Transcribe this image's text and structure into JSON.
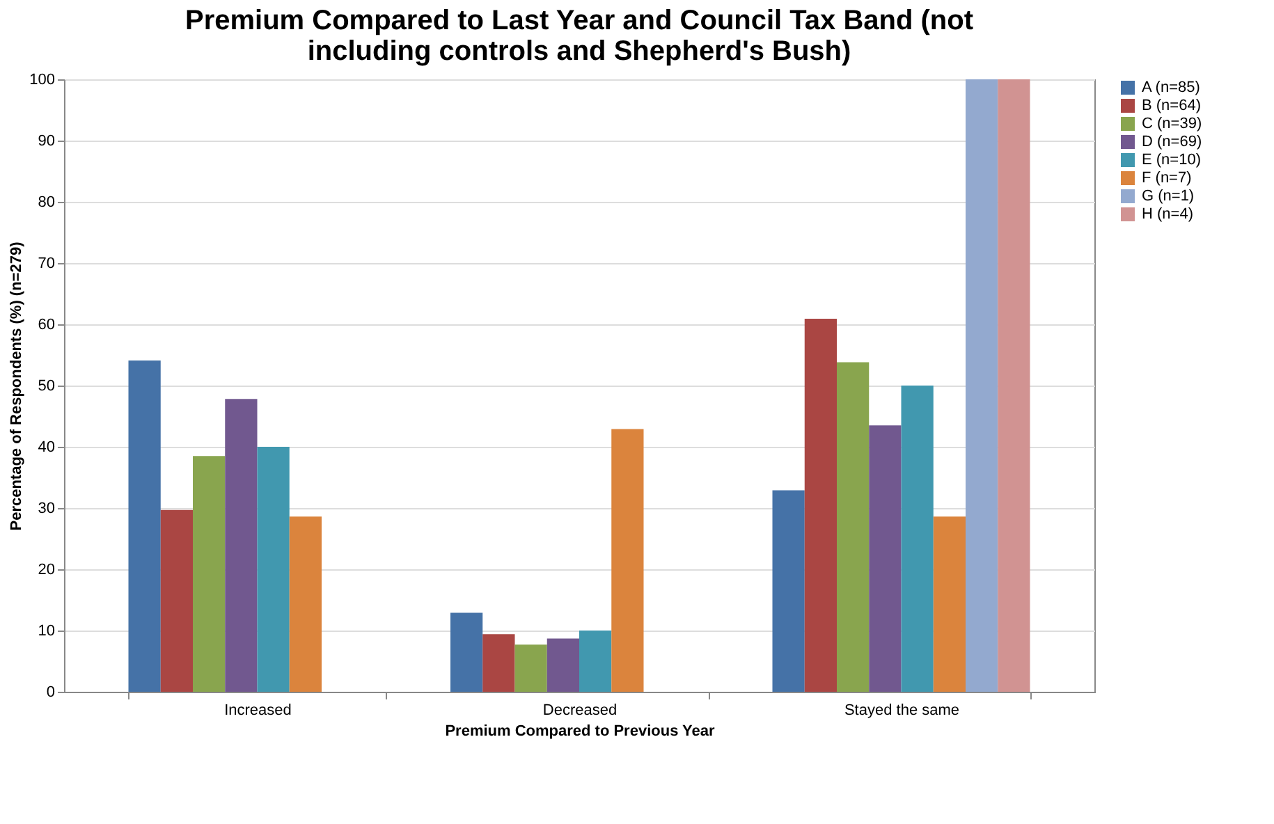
{
  "chart_data": {
    "type": "bar",
    "title": "Premium Compared to Last Year and Council Tax Band (not including controls and Shepherd's Bush)",
    "xlabel": "Premium Compared to Previous Year",
    "ylabel": "Percentage of Respondents (%) (n=279)",
    "categories": [
      "Increased",
      "Decreased",
      "Stayed the same"
    ],
    "series": [
      {
        "name": "A (n=85)",
        "color": "#4572a7",
        "values": [
          54.1,
          12.9,
          32.9
        ]
      },
      {
        "name": "B (n=64)",
        "color": "#aa4643",
        "values": [
          29.7,
          9.4,
          60.9
        ]
      },
      {
        "name": "C (n=39)",
        "color": "#89a54e",
        "values": [
          38.5,
          7.7,
          53.8
        ]
      },
      {
        "name": "D (n=69)",
        "color": "#71588f",
        "values": [
          47.8,
          8.7,
          43.5
        ]
      },
      {
        "name": "E (n=10)",
        "color": "#4198af",
        "values": [
          40,
          10,
          50
        ]
      },
      {
        "name": "F (n=7)",
        "color": "#db843d",
        "values": [
          28.6,
          42.9,
          28.6
        ]
      },
      {
        "name": "G (n=1)",
        "color": "#93a9cf",
        "values": [
          0,
          0,
          100
        ]
      },
      {
        "name": "H (n=4)",
        "color": "#d19392",
        "values": [
          0,
          0,
          100
        ]
      }
    ],
    "ylim": [
      0,
      100
    ],
    "yticks": [
      0,
      10,
      20,
      30,
      40,
      50,
      60,
      70,
      80,
      90,
      100
    ],
    "grid": "y",
    "legend": "right"
  }
}
